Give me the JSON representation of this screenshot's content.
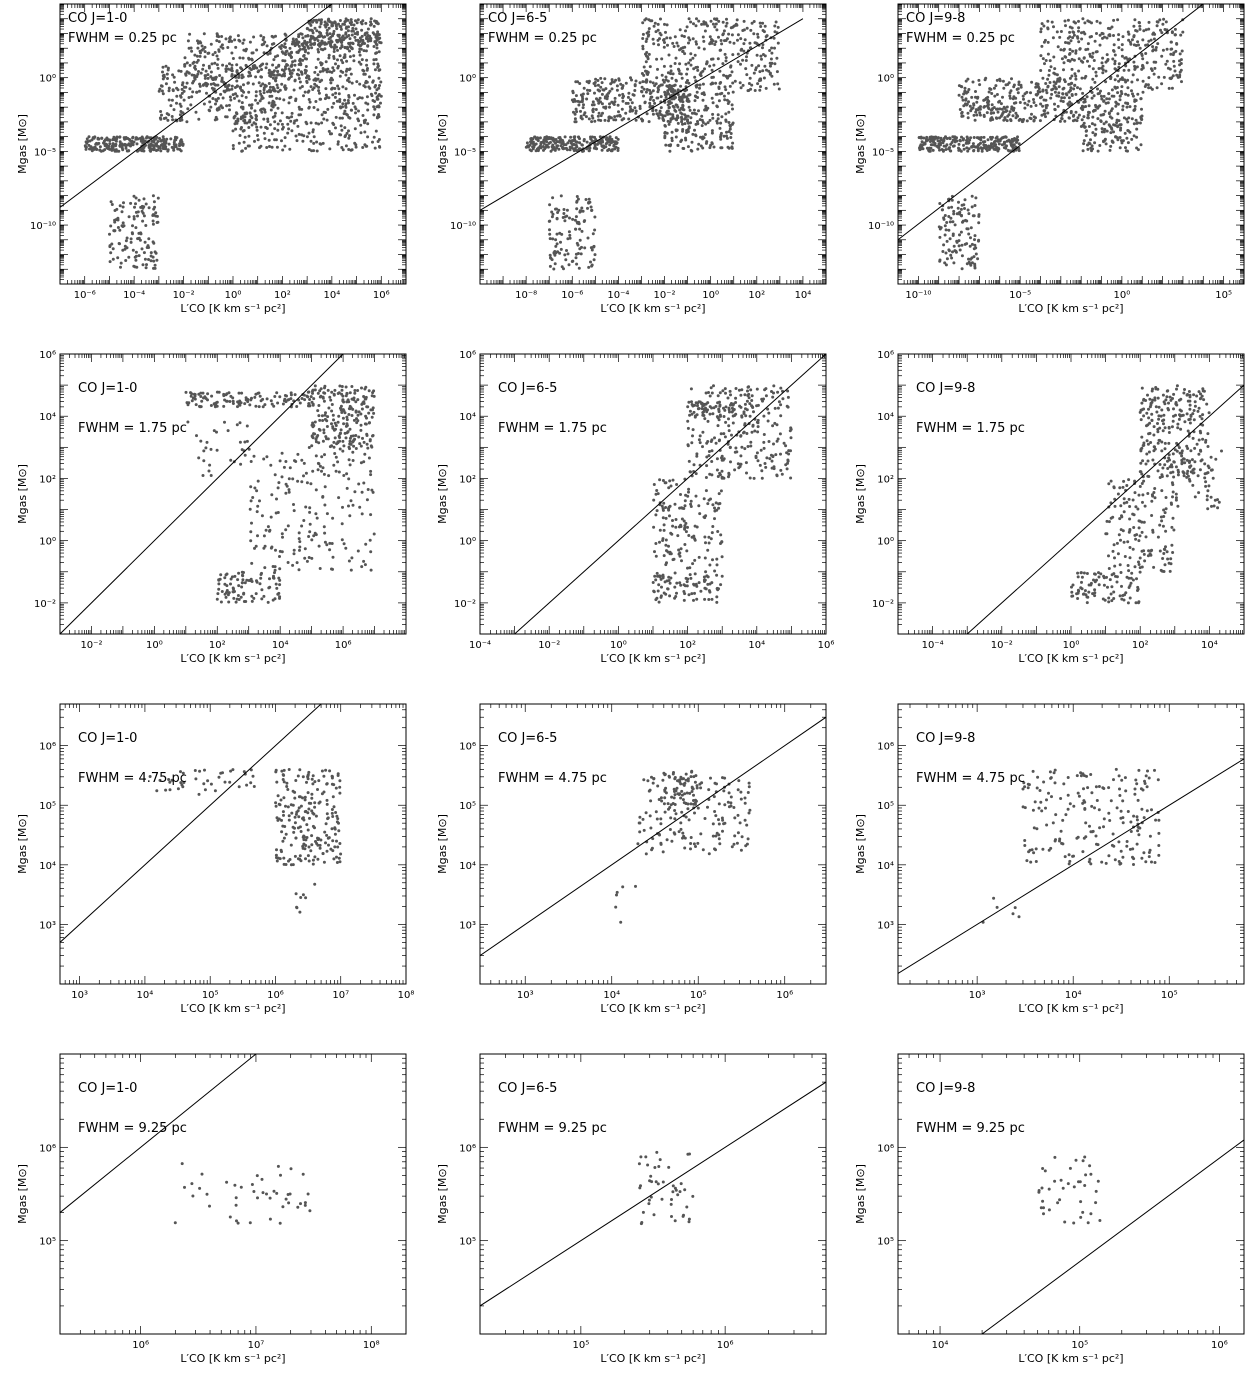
{
  "figure": {
    "xlabel": "L′CO [K km s⁻¹ pc²]",
    "ylabel": "Mgas [M⊙]"
  },
  "chart_data": [
    {
      "type": "scatter",
      "row": 0,
      "col": 0,
      "line_label": "CO J=1-0",
      "fwhm_label": "FWHM = 0.25 pc",
      "x_scale": "log",
      "y_scale": "log",
      "xlim": [
        1e-07,
        10000000.0
      ],
      "ylim": [
        1e-14,
        100000.0
      ],
      "x_ticks": [
        1e-06,
        0.0001,
        0.01,
        1,
        100.0,
        10000.0,
        1000000.0
      ],
      "x_tick_labels": [
        "10⁻⁶",
        "10⁻⁴",
        "10⁻²",
        "10⁰",
        "10²",
        "10⁴",
        "10⁶"
      ],
      "y_ticks": [
        1e-10,
        1e-05,
        1
      ],
      "y_tick_labels": [
        "10⁻¹⁰",
        "10⁻⁵",
        "10⁰"
      ],
      "fit_line": [
        [
          1e-07,
          1.58e-09
        ],
        [
          10000.0,
          100000.0
        ]
      ],
      "clusters": [
        {
          "x": [
            1e-06,
            0.01
          ],
          "y": [
            1e-05,
            0.0001
          ],
          "n": 260
        },
        {
          "x": [
            1e-05,
            0.001
          ],
          "y": [
            1e-13,
            1e-08
          ],
          "n": 130
        },
        {
          "x": [
            0.001,
            100.0
          ],
          "y": [
            0.001,
            10
          ],
          "n": 260
        },
        {
          "x": [
            0.01,
            1000.0
          ],
          "y": [
            0.1,
            1000.0
          ],
          "n": 280
        },
        {
          "x": [
            1.0,
            1000000.0
          ],
          "y": [
            1e-05,
            0.01
          ],
          "n": 220
        },
        {
          "x": [
            100.0,
            1000000.0
          ],
          "y": [
            0.01,
            1000.0
          ],
          "n": 320
        },
        {
          "x": [
            1000.0,
            1000000.0
          ],
          "y": [
            100.0,
            10000.0
          ],
          "n": 200
        }
      ]
    },
    {
      "type": "scatter",
      "row": 0,
      "col": 1,
      "line_label": "CO J=6-5",
      "fwhm_label": "FWHM = 0.25 pc",
      "x_scale": "log",
      "y_scale": "log",
      "xlim": [
        1e-10,
        100000.0
      ],
      "ylim": [
        1e-14,
        100000.0
      ],
      "x_ticks": [
        1e-08,
        1e-06,
        0.0001,
        0.01,
        1,
        100.0,
        10000.0
      ],
      "x_tick_labels": [
        "10⁻⁸",
        "10⁻⁶",
        "10⁻⁴",
        "10⁻²",
        "10⁰",
        "10²",
        "10⁴"
      ],
      "y_ticks": [
        1e-10,
        1e-05,
        1
      ],
      "y_tick_labels": [
        "10⁻¹⁰",
        "10⁻⁵",
        "10⁰"
      ],
      "fit_line": [
        [
          1e-10,
          1e-09
        ],
        [
          10000.0,
          10000.0
        ]
      ],
      "clusters": [
        {
          "x": [
            1e-08,
            0.0001
          ],
          "y": [
            1e-05,
            0.0001
          ],
          "n": 240
        },
        {
          "x": [
            1e-07,
            1e-05
          ],
          "y": [
            1e-13,
            1e-08
          ],
          "n": 120
        },
        {
          "x": [
            1e-06,
            0.1
          ],
          "y": [
            0.001,
            1
          ],
          "n": 300
        },
        {
          "x": [
            0.001,
            1000.0
          ],
          "y": [
            0.1,
            10000.0
          ],
          "n": 360
        },
        {
          "x": [
            0.01,
            10.0
          ],
          "y": [
            1e-05,
            0.1
          ],
          "n": 200
        }
      ]
    },
    {
      "type": "scatter",
      "row": 0,
      "col": 2,
      "line_label": "CO J=9-8",
      "fwhm_label": "FWHM = 0.25 pc",
      "x_scale": "log",
      "y_scale": "log",
      "xlim": [
        1e-11,
        1000000.0
      ],
      "ylim": [
        1e-14,
        100000.0
      ],
      "x_ticks": [
        1e-10,
        1e-05,
        1,
        100000.0
      ],
      "x_tick_labels": [
        "10⁻¹⁰",
        "10⁻⁵",
        "10⁰",
        "10⁵"
      ],
      "y_ticks": [
        1e-10,
        1e-05,
        1
      ],
      "y_tick_labels": [
        "10⁻¹⁰",
        "10⁻⁵",
        "10⁰"
      ],
      "fit_line": [
        [
          1e-11,
          1e-11
        ],
        [
          10000.0,
          100000.0
        ]
      ],
      "clusters": [
        {
          "x": [
            1e-10,
            1e-05
          ],
          "y": [
            1e-05,
            0.0001
          ],
          "n": 240
        },
        {
          "x": [
            1e-09,
            1e-07
          ],
          "y": [
            1e-13,
            1e-08
          ],
          "n": 120
        },
        {
          "x": [
            1e-08,
            0.01
          ],
          "y": [
            0.001,
            1
          ],
          "n": 300
        },
        {
          "x": [
            0.0001,
            1000.0
          ],
          "y": [
            0.1,
            10000.0
          ],
          "n": 360
        },
        {
          "x": [
            0.01,
            10.0
          ],
          "y": [
            1e-05,
            0.1
          ],
          "n": 200
        }
      ]
    },
    {
      "type": "scatter",
      "row": 1,
      "col": 0,
      "line_label": "CO J=1-0",
      "fwhm_label": "FWHM = 1.75 pc",
      "x_scale": "log",
      "y_scale": "log",
      "xlim": [
        0.001,
        100000000.0
      ],
      "ylim": [
        0.001,
        1000000.0
      ],
      "x_ticks": [
        0.01,
        1,
        100.0,
        10000.0,
        1000000.0
      ],
      "x_tick_labels": [
        "10⁻²",
        "10⁰",
        "10²",
        "10⁴",
        "10⁶"
      ],
      "y_ticks": [
        0.01,
        1,
        100.0,
        10000.0,
        1000000.0
      ],
      "y_tick_labels": [
        "10⁻²",
        "10⁰",
        "10²",
        "10⁴",
        "10⁶"
      ],
      "fit_line": [
        [
          0.001,
          0.001
        ],
        [
          1000000.0,
          1000000.0
        ]
      ],
      "clusters": [
        {
          "x": [
            10.0,
            100000.0
          ],
          "y": [
            20000.0,
            60000.0
          ],
          "n": 120
        },
        {
          "x": [
            100.0,
            10000.0
          ],
          "y": [
            0.01,
            0.1
          ],
          "n": 90
        },
        {
          "x": [
            1000.0,
            10000000.0
          ],
          "y": [
            0.1,
            1000.0
          ],
          "n": 200
        },
        {
          "x": [
            100000.0,
            10000000.0
          ],
          "y": [
            1000.0,
            100000.0
          ],
          "n": 220
        },
        {
          "x": [
            10.0,
            1000.0
          ],
          "y": [
            100.0,
            10000.0
          ],
          "n": 30
        }
      ]
    },
    {
      "type": "scatter",
      "row": 1,
      "col": 1,
      "line_label": "CO J=6-5",
      "fwhm_label": "FWHM = 1.75 pc",
      "x_scale": "log",
      "y_scale": "log",
      "xlim": [
        0.0001,
        1000000.0
      ],
      "ylim": [
        0.001,
        1000000.0
      ],
      "x_ticks": [
        0.0001,
        0.01,
        1,
        100.0,
        10000.0,
        1000000.0
      ],
      "x_tick_labels": [
        "10⁻⁴",
        "10⁻²",
        "10⁰",
        "10²",
        "10⁴",
        "10⁶"
      ],
      "y_ticks": [
        0.01,
        1,
        100.0,
        10000.0,
        1000000.0
      ],
      "y_tick_labels": [
        "10⁻²",
        "10⁰",
        "10²",
        "10⁴",
        "10⁶"
      ],
      "fit_line": [
        [
          0.001,
          0.001
        ],
        [
          1000000.0,
          1000000.0
        ]
      ],
      "clusters": [
        {
          "x": [
            10.0,
            1000.0
          ],
          "y": [
            0.01,
            0.1
          ],
          "n": 90
        },
        {
          "x": [
            10.0,
            1000.0
          ],
          "y": [
            0.1,
            100.0
          ],
          "n": 150
        },
        {
          "x": [
            100.0,
            100000.0
          ],
          "y": [
            100.0,
            100000.0
          ],
          "n": 260
        },
        {
          "x": [
            100.0,
            10000.0
          ],
          "y": [
            10000.0,
            30000.0
          ],
          "n": 60
        }
      ]
    },
    {
      "type": "scatter",
      "row": 1,
      "col": 2,
      "line_label": "CO J=9-8",
      "fwhm_label": "FWHM = 1.75 pc",
      "x_scale": "log",
      "y_scale": "log",
      "xlim": [
        1e-05,
        100000.0
      ],
      "ylim": [
        0.001,
        1000000.0
      ],
      "x_ticks": [
        0.0001,
        0.01,
        1,
        100.0,
        10000.0
      ],
      "x_tick_labels": [
        "10⁻⁴",
        "10⁻²",
        "10⁰",
        "10²",
        "10⁴"
      ],
      "y_ticks": [
        0.01,
        1,
        100.0,
        10000.0,
        1000000.0
      ],
      "y_tick_labels": [
        "10⁻²",
        "10⁰",
        "10²",
        "10⁴",
        "10⁶"
      ],
      "fit_line": [
        [
          0.001,
          0.001
        ],
        [
          100000.0,
          100000.0
        ]
      ],
      "clusters": [
        {
          "x": [
            1.0,
            100.0
          ],
          "y": [
            0.01,
            0.1
          ],
          "n": 90
        },
        {
          "x": [
            10.0,
            1000.0
          ],
          "y": [
            0.1,
            100.0
          ],
          "n": 150
        },
        {
          "x": [
            100.0,
            10000.0
          ],
          "y": [
            100.0,
            100000.0
          ],
          "n": 260
        },
        {
          "x": [
            1000.0,
            30000.0
          ],
          "y": [
            10.0,
            1000.0
          ],
          "n": 40
        }
      ]
    },
    {
      "type": "scatter",
      "row": 2,
      "col": 0,
      "line_label": "CO J=1-0",
      "fwhm_label": "FWHM = 4.75 pc",
      "x_scale": "log",
      "y_scale": "log",
      "xlim": [
        500,
        100000000.0
      ],
      "ylim": [
        100,
        5000000.0
      ],
      "x_ticks": [
        1000.0,
        10000.0,
        100000.0,
        1000000.0,
        10000000.0,
        100000000.0
      ],
      "x_tick_labels": [
        "10³",
        "10⁴",
        "10⁵",
        "10⁶",
        "10⁷",
        "10⁸"
      ],
      "y_ticks": [
        1000.0,
        10000.0,
        100000.0,
        1000000.0
      ],
      "y_tick_labels": [
        "10³",
        "10⁴",
        "10⁵",
        "10⁶"
      ],
      "fit_line": [
        [
          500,
          500
        ],
        [
          5000000.0,
          5000000.0
        ]
      ],
      "clusters": [
        {
          "x": [
            10000.0,
            500000.0
          ],
          "y": [
            150000.0,
            400000.0
          ],
          "n": 40
        },
        {
          "x": [
            1000000.0,
            10000000.0
          ],
          "y": [
            10000.0,
            400000.0
          ],
          "n": 220
        },
        {
          "x": [
            2000000.0,
            4000000.0
          ],
          "y": [
            1000.0,
            5000.0
          ],
          "n": 8
        }
      ]
    },
    {
      "type": "scatter",
      "row": 2,
      "col": 1,
      "line_label": "CO J=6-5",
      "fwhm_label": "FWHM = 4.75 pc",
      "x_scale": "log",
      "y_scale": "log",
      "xlim": [
        300,
        3000000.0
      ],
      "ylim": [
        100,
        5000000.0
      ],
      "x_ticks": [
        1000.0,
        10000.0,
        100000.0,
        1000000.0
      ],
      "x_tick_labels": [
        "10³",
        "10⁴",
        "10⁵",
        "10⁶"
      ],
      "y_ticks": [
        1000.0,
        10000.0,
        100000.0,
        1000000.0
      ],
      "y_tick_labels": [
        "10³",
        "10⁴",
        "10⁵",
        "10⁶"
      ],
      "fit_line": [
        [
          300,
          300
        ],
        [
          3000000.0,
          3000000.0
        ]
      ],
      "clusters": [
        {
          "x": [
            20000.0,
            400000.0
          ],
          "y": [
            15000.0,
            300000.0
          ],
          "n": 160
        },
        {
          "x": [
            40000.0,
            100000.0
          ],
          "y": [
            100000.0,
            400000.0
          ],
          "n": 60
        },
        {
          "x": [
            5000.0,
            20000.0
          ],
          "y": [
            1000.0,
            5000.0
          ],
          "n": 6
        }
      ]
    },
    {
      "type": "scatter",
      "row": 2,
      "col": 2,
      "line_label": "CO J=9-8",
      "fwhm_label": "FWHM = 4.75 pc",
      "x_scale": "log",
      "y_scale": "log",
      "xlim": [
        150,
        600000.0
      ],
      "ylim": [
        100,
        5000000.0
      ],
      "x_ticks": [
        1000.0,
        10000.0,
        100000.0
      ],
      "x_tick_labels": [
        "10³",
        "10⁴",
        "10⁵"
      ],
      "y_ticks": [
        1000.0,
        10000.0,
        100000.0,
        1000000.0
      ],
      "y_tick_labels": [
        "10³",
        "10⁴",
        "10⁵",
        "10⁶"
      ],
      "fit_line": [
        [
          150,
          150
        ],
        [
          600000.0,
          600000.0
        ]
      ],
      "clusters": [
        {
          "x": [
            3000.0,
            80000.0
          ],
          "y": [
            10000.0,
            400000.0
          ],
          "n": 200
        },
        {
          "x": [
            1000.0,
            3000.0
          ],
          "y": [
            1000.0,
            3000.0
          ],
          "n": 6
        }
      ]
    },
    {
      "type": "scatter",
      "row": 3,
      "col": 0,
      "line_label": "CO J=1-0",
      "fwhm_label": "FWHM = 9.25 pc",
      "x_scale": "log",
      "y_scale": "log",
      "xlim": [
        200000.0,
        200000000.0
      ],
      "ylim": [
        10000.0,
        10000000.0
      ],
      "x_ticks": [
        1000000.0,
        10000000.0,
        100000000.0
      ],
      "x_tick_labels": [
        "10⁶",
        "10⁷",
        "10⁸"
      ],
      "y_ticks": [
        100000.0,
        1000000.0
      ],
      "y_tick_labels": [
        "10⁵",
        "10⁶"
      ],
      "fit_line": [
        [
          200000.0,
          200000.0
        ],
        [
          10000000.0,
          10000000.0
        ]
      ],
      "clusters": [
        {
          "x": [
            2000000.0,
            30000000.0
          ],
          "y": [
            150000.0,
            800000.0
          ],
          "n": 45
        }
      ]
    },
    {
      "type": "scatter",
      "row": 3,
      "col": 1,
      "line_label": "CO J=6-5",
      "fwhm_label": "FWHM = 9.25 pc",
      "x_scale": "log",
      "y_scale": "log",
      "xlim": [
        20000.0,
        5000000.0
      ],
      "ylim": [
        10000.0,
        10000000.0
      ],
      "x_ticks": [
        100000.0,
        1000000.0
      ],
      "x_tick_labels": [
        "10⁵",
        "10⁶"
      ],
      "y_ticks": [
        100000.0,
        1000000.0
      ],
      "y_tick_labels": [
        "10⁵",
        "10⁶"
      ],
      "fit_line": [
        [
          20000.0,
          20000.0
        ],
        [
          5000000.0,
          5000000.0
        ]
      ],
      "clusters": [
        {
          "x": [
            250000.0,
            600000.0
          ],
          "y": [
            150000.0,
            900000.0
          ],
          "n": 45
        }
      ]
    },
    {
      "type": "scatter",
      "row": 3,
      "col": 2,
      "line_label": "CO J=9-8",
      "fwhm_label": "FWHM = 9.25 pc",
      "x_scale": "log",
      "y_scale": "log",
      "xlim": [
        5000.0,
        1500000.0
      ],
      "ylim": [
        10000.0,
        10000000.0
      ],
      "x_ticks": [
        10000.0,
        100000.0,
        1000000.0
      ],
      "x_tick_labels": [
        "10⁴",
        "10⁵",
        "10⁶"
      ],
      "y_ticks": [
        100000.0,
        1000000.0
      ],
      "y_tick_labels": [
        "10⁵",
        "10⁶"
      ],
      "fit_line": [
        [
          20000.0,
          10000.0
        ],
        [
          1500000.0,
          1200000.0
        ]
      ],
      "clusters": [
        {
          "x": [
            50000.0,
            140000.0
          ],
          "y": [
            150000.0,
            800000.0
          ],
          "n": 40
        }
      ]
    }
  ]
}
